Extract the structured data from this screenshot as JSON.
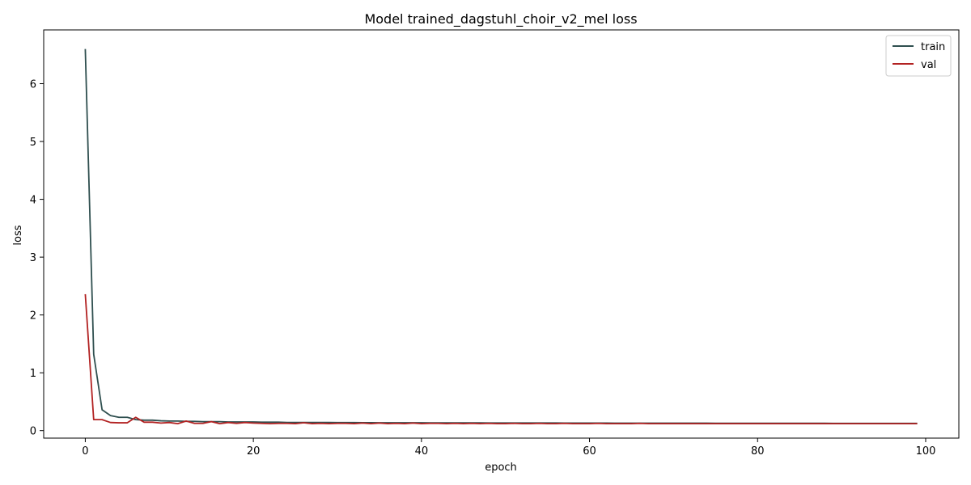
{
  "chart_data": {
    "type": "line",
    "title": "Model trained_dagstuhl_choir_v2_mel loss",
    "xlabel": "epoch",
    "ylabel": "loss",
    "xlim": [
      -4.95,
      103.95
    ],
    "ylim": [
      -0.13,
      6.93
    ],
    "x_ticks": [
      0,
      20,
      40,
      60,
      80,
      100
    ],
    "y_ticks": [
      0,
      1,
      2,
      3,
      4,
      5,
      6
    ],
    "grid": false,
    "legend_position": "top-right",
    "series": [
      {
        "name": "train",
        "color": "#2f4f4f",
        "x": [
          0,
          1,
          2,
          3,
          4,
          5,
          6,
          7,
          8,
          9,
          10,
          11,
          12,
          13,
          14,
          15,
          16,
          17,
          18,
          19,
          20,
          21,
          22,
          23,
          24,
          25,
          26,
          27,
          28,
          29,
          30,
          31,
          32,
          33,
          34,
          35,
          36,
          37,
          38,
          39,
          40,
          41,
          42,
          43,
          44,
          45,
          46,
          47,
          48,
          49,
          50,
          51,
          52,
          53,
          54,
          55,
          56,
          57,
          58,
          59,
          60,
          61,
          62,
          63,
          64,
          65,
          66,
          67,
          68,
          69,
          70,
          71,
          72,
          73,
          74,
          75,
          76,
          77,
          78,
          79,
          80,
          81,
          82,
          83,
          84,
          85,
          86,
          87,
          88,
          89,
          90,
          91,
          92,
          93,
          94,
          95,
          96,
          97,
          98,
          99
        ],
        "y": [
          6.6,
          1.32,
          0.36,
          0.26,
          0.23,
          0.23,
          0.19,
          0.18,
          0.18,
          0.17,
          0.165,
          0.165,
          0.16,
          0.16,
          0.155,
          0.155,
          0.155,
          0.15,
          0.15,
          0.15,
          0.15,
          0.145,
          0.145,
          0.145,
          0.14,
          0.14,
          0.14,
          0.14,
          0.14,
          0.14,
          0.138,
          0.138,
          0.138,
          0.137,
          0.137,
          0.136,
          0.136,
          0.135,
          0.135,
          0.135,
          0.135,
          0.134,
          0.134,
          0.134,
          0.133,
          0.133,
          0.133,
          0.133,
          0.132,
          0.132,
          0.132,
          0.132,
          0.131,
          0.131,
          0.131,
          0.131,
          0.131,
          0.13,
          0.13,
          0.13,
          0.13,
          0.13,
          0.13,
          0.129,
          0.129,
          0.129,
          0.129,
          0.129,
          0.129,
          0.128,
          0.128,
          0.128,
          0.128,
          0.128,
          0.128,
          0.127,
          0.127,
          0.127,
          0.127,
          0.127,
          0.127,
          0.127,
          0.126,
          0.126,
          0.126,
          0.126,
          0.126,
          0.126,
          0.126,
          0.125,
          0.125,
          0.125,
          0.125,
          0.125,
          0.125,
          0.125,
          0.125,
          0.124,
          0.124,
          0.124
        ]
      },
      {
        "name": "val",
        "color": "#b22222",
        "x": [
          0,
          1,
          2,
          3,
          4,
          5,
          6,
          7,
          8,
          9,
          10,
          11,
          12,
          13,
          14,
          15,
          16,
          17,
          18,
          19,
          20,
          21,
          22,
          23,
          24,
          25,
          26,
          27,
          28,
          29,
          30,
          31,
          32,
          33,
          34,
          35,
          36,
          37,
          38,
          39,
          40,
          41,
          42,
          43,
          44,
          45,
          46,
          47,
          48,
          49,
          50,
          51,
          52,
          53,
          54,
          55,
          56,
          57,
          58,
          59,
          60,
          61,
          62,
          63,
          64,
          65,
          66,
          67,
          68,
          69,
          70,
          71,
          72,
          73,
          74,
          75,
          76,
          77,
          78,
          79,
          80,
          81,
          82,
          83,
          84,
          85,
          86,
          87,
          88,
          89,
          90,
          91,
          92,
          93,
          94,
          95,
          96,
          97,
          98,
          99
        ],
        "y": [
          2.36,
          0.19,
          0.19,
          0.14,
          0.135,
          0.135,
          0.23,
          0.145,
          0.145,
          0.13,
          0.14,
          0.12,
          0.165,
          0.125,
          0.125,
          0.155,
          0.12,
          0.14,
          0.125,
          0.14,
          0.13,
          0.125,
          0.12,
          0.125,
          0.125,
          0.12,
          0.135,
          0.12,
          0.125,
          0.12,
          0.125,
          0.125,
          0.12,
          0.13,
          0.12,
          0.13,
          0.12,
          0.125,
          0.12,
          0.13,
          0.12,
          0.125,
          0.125,
          0.12,
          0.125,
          0.12,
          0.125,
          0.12,
          0.125,
          0.12,
          0.12,
          0.125,
          0.12,
          0.12,
          0.125,
          0.12,
          0.12,
          0.125,
          0.12,
          0.12,
          0.12,
          0.125,
          0.12,
          0.12,
          0.12,
          0.12,
          0.125,
          0.12,
          0.12,
          0.12,
          0.12,
          0.12,
          0.12,
          0.12,
          0.12,
          0.12,
          0.12,
          0.12,
          0.12,
          0.12,
          0.12,
          0.12,
          0.12,
          0.12,
          0.12,
          0.12,
          0.12,
          0.12,
          0.12,
          0.12,
          0.12,
          0.12,
          0.12,
          0.12,
          0.12,
          0.12,
          0.12,
          0.12,
          0.12,
          0.12
        ]
      }
    ]
  }
}
